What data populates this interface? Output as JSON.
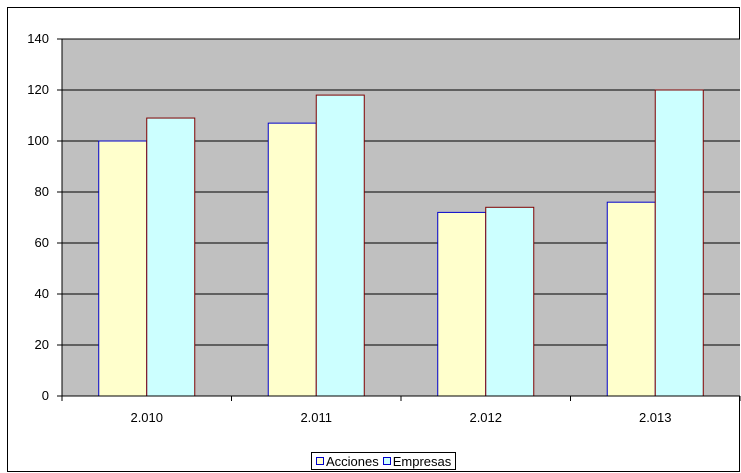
{
  "chart_data": {
    "type": "bar",
    "categories": [
      "2.010",
      "2.011",
      "2.012",
      "2.013"
    ],
    "series": [
      {
        "name": "Acciones",
        "values": [
          100,
          107,
          72,
          76
        ],
        "color": "#ffffcc",
        "stroke": "#0000cc"
      },
      {
        "name": "Empresas",
        "values": [
          109,
          118,
          74,
          120
        ],
        "color": "#ccffff",
        "stroke": "#800000"
      }
    ],
    "ylim": [
      0,
      140
    ],
    "yticks": [
      0,
      20,
      40,
      60,
      80,
      100,
      120,
      140
    ],
    "ytick_labels": [
      "0",
      "20",
      "40",
      "60",
      "80",
      "100",
      "120",
      "140"
    ],
    "grid": true,
    "plot_background": "#c0c0c0",
    "legend_position": "bottom"
  }
}
